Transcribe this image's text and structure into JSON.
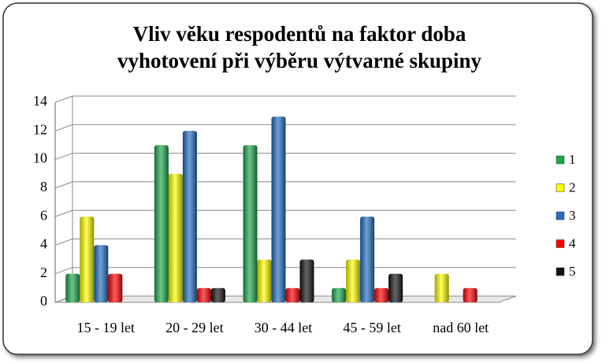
{
  "chart_data": {
    "type": "bar",
    "title": [
      "Vliv věku respodentů na faktor doba",
      "vyhotovení při výběru výtvarné skupiny"
    ],
    "categories": [
      "15 - 19 let",
      "20 - 29 let",
      "30 - 44 let",
      "45 - 59 let",
      "nad 60 let"
    ],
    "series": [
      {
        "name": "1",
        "color": "#1aa84a",
        "values": [
          2,
          11,
          11,
          1,
          0
        ]
      },
      {
        "name": "2",
        "color": "#ffff00",
        "values": [
          6,
          9,
          3,
          3,
          2
        ]
      },
      {
        "name": "3",
        "color": "#1f6fc0",
        "values": [
          4,
          12,
          13,
          6,
          0
        ]
      },
      {
        "name": "4",
        "color": "#ff0000",
        "values": [
          2,
          1,
          1,
          1,
          1
        ]
      },
      {
        "name": "5",
        "color": "#111111",
        "values": [
          0,
          1,
          3,
          2,
          0
        ]
      }
    ],
    "ylim": [
      0,
      14
    ],
    "yticks": [
      0,
      2,
      4,
      6,
      8,
      10,
      12,
      14
    ],
    "grid": true,
    "legend": "right"
  }
}
